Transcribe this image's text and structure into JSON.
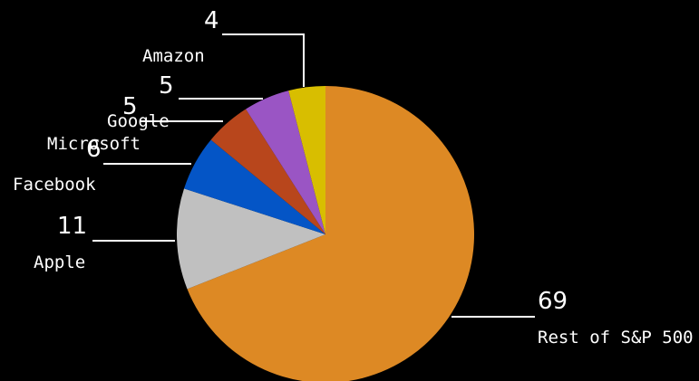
{
  "chart_data": {
    "type": "pie",
    "start_angle_deg": 0,
    "direction": "clockwise",
    "slices": [
      {
        "name": "Rest of S&P 500",
        "value": 69,
        "label": "69",
        "color": "#dd8924"
      },
      {
        "name": "Apple",
        "value": 11,
        "label": "11",
        "color": "#c0c0c0"
      },
      {
        "name": "Facebook",
        "value": 6,
        "label": "6",
        "color": "#0455c6"
      },
      {
        "name": "Microsoft",
        "value": 5,
        "label": "5",
        "color": "#b8461c"
      },
      {
        "name": "Google",
        "value": 5,
        "label": "5",
        "color": "#9a55c4"
      },
      {
        "name": "Amazon",
        "value": 4,
        "label": "4",
        "color": "#d8be00"
      }
    ],
    "background": "#000000",
    "label_color": "#ffffff"
  }
}
